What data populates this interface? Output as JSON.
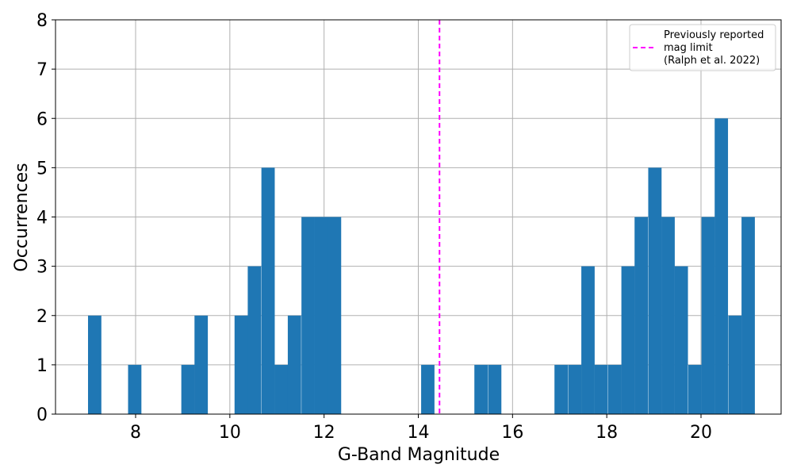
{
  "chart_data": {
    "type": "bar",
    "xlabel": "G-Band Magnitude",
    "ylabel": "Occurrences",
    "xlim": [
      6.3,
      21.7
    ],
    "ylim": [
      0,
      8
    ],
    "xticks": [
      8,
      10,
      12,
      14,
      16,
      18,
      20
    ],
    "yticks": [
      0,
      1,
      2,
      3,
      4,
      5,
      6,
      7,
      8
    ],
    "grid": true,
    "bar_color": "#1f77b4",
    "bin_width": 0.283,
    "bins": [
      {
        "x": 6.99,
        "value": 2
      },
      {
        "x": 7.84,
        "value": 1
      },
      {
        "x": 8.97,
        "value": 1
      },
      {
        "x": 9.25,
        "value": 2
      },
      {
        "x": 10.1,
        "value": 2
      },
      {
        "x": 10.38,
        "value": 3
      },
      {
        "x": 10.67,
        "value": 5
      },
      {
        "x": 10.95,
        "value": 1
      },
      {
        "x": 11.23,
        "value": 2
      },
      {
        "x": 11.52,
        "value": 4
      },
      {
        "x": 11.8,
        "value": 4
      },
      {
        "x": 12.08,
        "value": 4
      },
      {
        "x": 14.06,
        "value": 1
      },
      {
        "x": 15.19,
        "value": 1
      },
      {
        "x": 15.48,
        "value": 1
      },
      {
        "x": 16.89,
        "value": 1
      },
      {
        "x": 17.18,
        "value": 1
      },
      {
        "x": 17.46,
        "value": 3
      },
      {
        "x": 17.74,
        "value": 1
      },
      {
        "x": 18.03,
        "value": 1
      },
      {
        "x": 18.31,
        "value": 3
      },
      {
        "x": 18.59,
        "value": 4
      },
      {
        "x": 18.88,
        "value": 5
      },
      {
        "x": 19.16,
        "value": 4
      },
      {
        "x": 19.44,
        "value": 3
      },
      {
        "x": 19.73,
        "value": 1
      },
      {
        "x": 20.01,
        "value": 4
      },
      {
        "x": 20.29,
        "value": 6
      },
      {
        "x": 20.58,
        "value": 2
      },
      {
        "x": 20.86,
        "value": 4
      }
    ],
    "reference_line": {
      "x": 14.45,
      "color": "#ff00ff",
      "style": "dashed",
      "legend_label": "Previously reported\nmag limit\n(Ralph et al. 2022)"
    },
    "legend": {
      "position": "top-right",
      "lines": [
        "Previously reported",
        "mag limit",
        "(Ralph et al. 2022)"
      ]
    }
  }
}
